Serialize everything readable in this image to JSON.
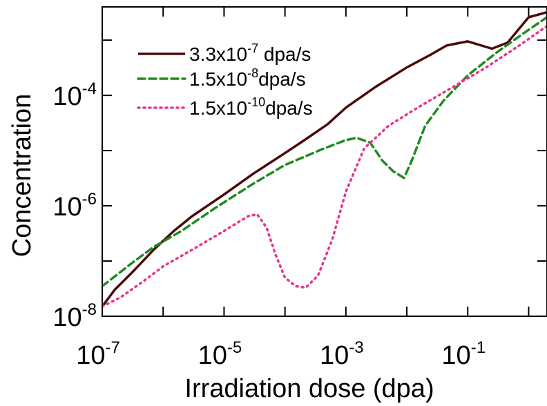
{
  "chart_data": {
    "type": "line",
    "xlabel": "Irradiation dose (dpa)",
    "ylabel": "Concentration",
    "xscale": "log",
    "yscale": "log",
    "xlim": [
      1e-07,
      2
    ],
    "ylim": [
      1e-08,
      0.004
    ],
    "grid": false,
    "legend_position": "top-left",
    "x_ticks": [
      {
        "base": "10",
        "exp": "-7",
        "value": 1e-07
      },
      {
        "base": "10",
        "exp": "-5",
        "value": 1e-05
      },
      {
        "base": "10",
        "exp": "-3",
        "value": 0.001
      },
      {
        "base": "10",
        "exp": "-1",
        "value": 0.1
      }
    ],
    "y_ticks": [
      {
        "base": "10",
        "exp": "-8",
        "value": 1e-08
      },
      {
        "base": "10",
        "exp": "-6",
        "value": 1e-06
      },
      {
        "base": "10",
        "exp": "-4",
        "value": 0.0001
      }
    ],
    "series": [
      {
        "label_base": "3.3x10",
        "label_exp": "-7",
        "label_unit": " dpa/s",
        "color": "#4a0a0a",
        "dash": "solid",
        "x": [
          1e-07,
          1.6e-07,
          3e-07,
          7e-07,
          1.5e-06,
          3e-06,
          1e-05,
          3e-05,
          0.0001,
          0.0002,
          0.0005,
          0.001,
          0.003,
          0.01,
          0.025,
          0.045,
          0.1,
          0.25,
          0.45,
          1.0,
          2.0
        ],
        "y": [
          1.5e-08,
          3e-08,
          6e-08,
          1.6e-07,
          3.5e-07,
          6.5e-07,
          1.6e-06,
          3.8e-06,
          9e-06,
          1.5e-05,
          3e-05,
          6e-05,
          0.00014,
          0.00032,
          0.00055,
          0.0008,
          0.00095,
          0.0007,
          0.0009,
          0.0026,
          0.0032
        ]
      },
      {
        "label_base": "1.5x10",
        "label_exp": "-8",
        "label_unit": "dpa/s",
        "color": "#1e8c1e",
        "dash": "10,6",
        "x": [
          1e-07,
          3e-07,
          7e-07,
          2e-06,
          7e-06,
          3e-05,
          0.0001,
          0.0004,
          0.001,
          0.0015,
          0.0025,
          0.004,
          0.006,
          0.009,
          0.012,
          0.02,
          0.04,
          0.1,
          0.3,
          0.8,
          2.0
        ],
        "y": [
          3.5e-08,
          9e-08,
          1.8e-07,
          3.5e-07,
          9e-07,
          2.5e-06,
          5.5e-06,
          1.05e-05,
          1.55e-05,
          1.7e-05,
          1.4e-05,
          6.5e-06,
          4.2e-06,
          3.2e-06,
          6.5e-06,
          2.8e-05,
          8e-05,
          0.00023,
          0.0006,
          0.0013,
          0.0026
        ]
      },
      {
        "label_base": "1.5x10",
        "label_exp": "-10",
        "label_unit": "dpa/s",
        "color": "#e8348c",
        "dash": "2,6",
        "x": [
          1e-07,
          2e-07,
          5e-07,
          1e-06,
          3e-06,
          1e-05,
          2.5e-05,
          3.5e-05,
          5e-05,
          7e-05,
          0.0001,
          0.00015,
          0.00022,
          0.00035,
          0.0006,
          0.001,
          0.002,
          0.005,
          0.015,
          0.05,
          0.2,
          0.7,
          2.0
        ],
        "y": [
          1.5e-08,
          2.2e-08,
          4.5e-08,
          8e-08,
          1.6e-07,
          3.5e-07,
          6.5e-07,
          7e-07,
          4e-07,
          1.3e-07,
          5e-08,
          3.5e-08,
          3.3e-08,
          5.5e-08,
          2.5e-07,
          1.8e-06,
          1.1e-05,
          2.8e-05,
          6e-05,
          0.00013,
          0.00032,
          0.0008,
          0.0018
        ]
      }
    ]
  }
}
